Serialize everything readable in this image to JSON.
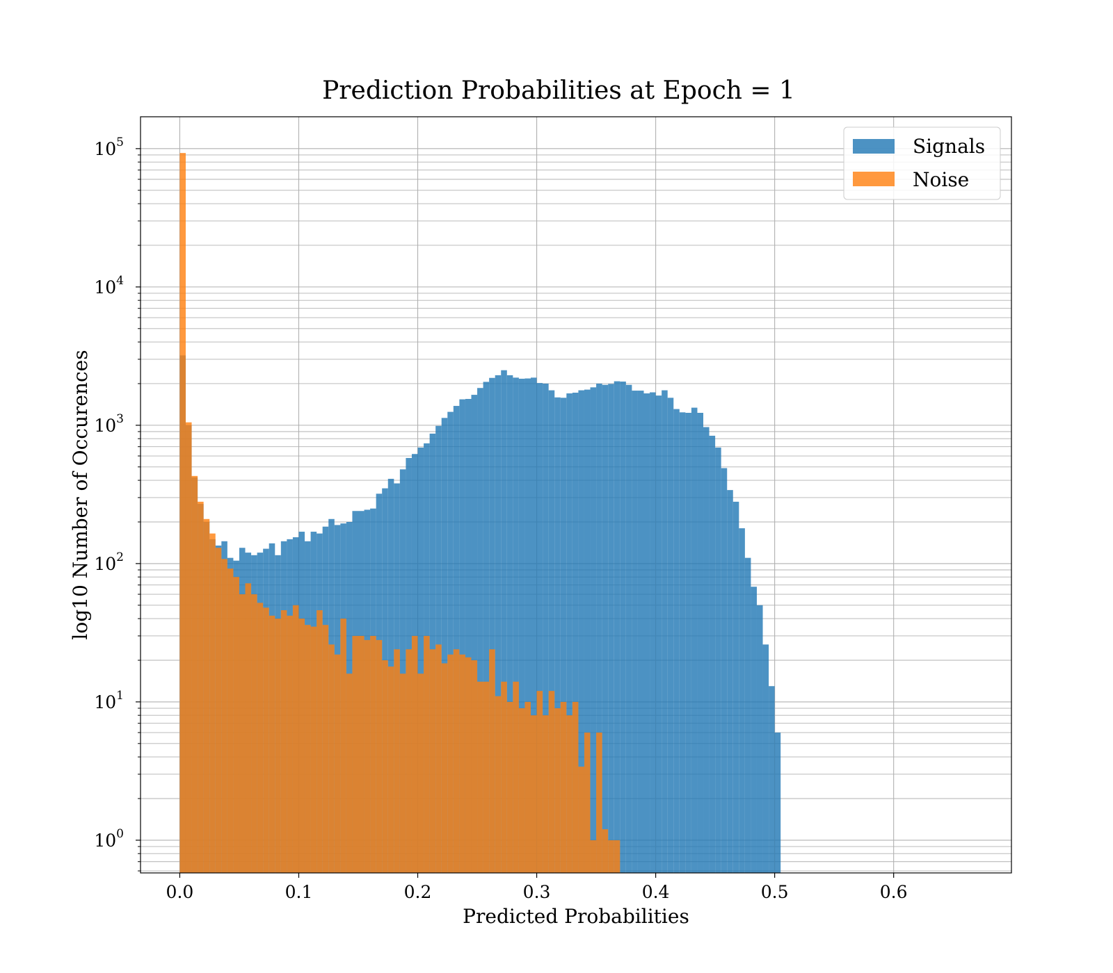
{
  "chart_data": {
    "type": "bar",
    "title": "Prediction Probabilities at Epoch = 1",
    "xlabel": "Predicted Probabilities",
    "ylabel": "log10 Number of Occurences",
    "xlim": [
      -0.033,
      0.699
    ],
    "ylim": [
      0.58,
      170000
    ],
    "yscale": "log",
    "grid": true,
    "legend_position": "top-right",
    "x_ticks": [
      {
        "value": 0.0,
        "label": "0.0"
      },
      {
        "value": 0.1,
        "label": "0.1"
      },
      {
        "value": 0.2,
        "label": "0.2"
      },
      {
        "value": 0.3,
        "label": "0.3"
      },
      {
        "value": 0.4,
        "label": "0.4"
      },
      {
        "value": 0.5,
        "label": "0.5"
      },
      {
        "value": 0.6,
        "label": "0.6"
      }
    ],
    "y_ticks": [
      {
        "value": 1,
        "base": "10",
        "exp": "0"
      },
      {
        "value": 10,
        "base": "10",
        "exp": "1"
      },
      {
        "value": 100,
        "base": "10",
        "exp": "2"
      },
      {
        "value": 1000,
        "base": "10",
        "exp": "3"
      },
      {
        "value": 10000,
        "base": "10",
        "exp": "4"
      },
      {
        "value": 100000,
        "base": "10",
        "exp": "5"
      }
    ],
    "series": [
      {
        "name": "Signals",
        "color": "#1f77b4",
        "bin_start": 0.0,
        "bin_width": 0.005,
        "values": [
          3200,
          1000,
          420,
          270,
          200,
          150,
          135,
          145,
          110,
          105,
          130,
          120,
          115,
          120,
          128,
          140,
          115,
          145,
          150,
          155,
          170,
          145,
          170,
          165,
          185,
          210,
          190,
          195,
          200,
          240,
          240,
          245,
          250,
          320,
          350,
          410,
          380,
          480,
          580,
          620,
          690,
          740,
          870,
          990,
          1130,
          1250,
          1380,
          1540,
          1550,
          1660,
          1860,
          2060,
          2200,
          2300,
          2500,
          2300,
          2210,
          2170,
          2180,
          2210,
          2020,
          2000,
          1790,
          1590,
          1580,
          1700,
          1720,
          1790,
          1810,
          1880,
          2000,
          1960,
          1990,
          2080,
          2070,
          1960,
          1780,
          1780,
          1700,
          1730,
          1640,
          1790,
          1580,
          1310,
          1240,
          1230,
          1340,
          1230,
          970,
          840,
          690,
          490,
          340,
          280,
          180,
          110,
          68,
          50,
          26,
          13,
          6
        ]
      },
      {
        "name": "Noise",
        "color": "#ff7f0e",
        "bin_start": 0.0,
        "bin_width": 0.005,
        "values": [
          93000,
          1050,
          430,
          280,
          210,
          165,
          130,
          108,
          92,
          80,
          60,
          72,
          60,
          52,
          48,
          42,
          40,
          46,
          42,
          50,
          40,
          36,
          35,
          46,
          36,
          26,
          22,
          40,
          16,
          30,
          30,
          28,
          30,
          28,
          20,
          18,
          24,
          16,
          24,
          30,
          16,
          30,
          24,
          26,
          19,
          22,
          24,
          22,
          21,
          20,
          14,
          14,
          24,
          11,
          14,
          10,
          14,
          9,
          10,
          8,
          12,
          8,
          12,
          9,
          10,
          8,
          10,
          3.4,
          6,
          1,
          6,
          1.2,
          1,
          1,
          0.58
        ]
      }
    ]
  }
}
